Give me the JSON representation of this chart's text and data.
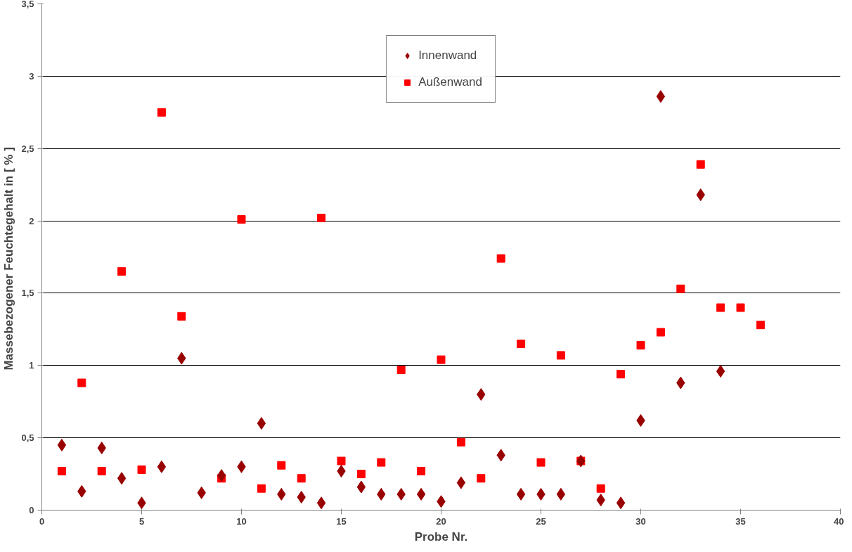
{
  "chart_data": {
    "type": "scatter",
    "xlabel": "Probe Nr.",
    "ylabel": "Massebezogener Feuchtegehalt in  [ % ]",
    "xlim": [
      0,
      40
    ],
    "xticks": [
      0,
      5,
      10,
      15,
      20,
      25,
      30,
      35,
      40
    ],
    "ylim": [
      0,
      3.5
    ],
    "yticks": [
      0,
      {
        "value": 0.5,
        "label": "0,5"
      },
      1,
      {
        "value": 1.5,
        "label": "1,5"
      },
      2,
      {
        "value": 2.5,
        "label": "2,5"
      },
      3,
      {
        "value": 3.5,
        "label": "3,5"
      }
    ],
    "grid": "y",
    "legend": "top",
    "series": [
      {
        "name": "Innenwand",
        "color": "#990000",
        "marker": "diamond",
        "x": [
          1,
          2,
          3,
          4,
          5,
          6,
          7,
          8,
          9,
          10,
          11,
          12,
          13,
          14,
          15,
          16,
          17,
          18,
          19,
          20,
          21,
          22,
          23,
          24,
          25,
          26,
          27,
          28,
          29,
          30,
          31,
          32,
          33,
          34
        ],
        "values": [
          0.45,
          0.13,
          0.43,
          0.22,
          0.05,
          0.3,
          1.05,
          0.12,
          0.24,
          0.3,
          0.6,
          0.11,
          0.09,
          0.05,
          0.27,
          0.16,
          0.11,
          0.11,
          0.11,
          0.06,
          0.19,
          0.8,
          0.38,
          0.11,
          0.11,
          0.11,
          0.34,
          0.07,
          0.05,
          0.62,
          2.86,
          0.88,
          2.18,
          0.96
        ]
      },
      {
        "name": "Außenwand",
        "color": "#ff0000",
        "marker": "square",
        "x": [
          1,
          2,
          3,
          4,
          5,
          6,
          7,
          9,
          10,
          11,
          12,
          13,
          14,
          15,
          16,
          17,
          18,
          19,
          20,
          21,
          22,
          23,
          24,
          25,
          26,
          27,
          28,
          29,
          30,
          31,
          32,
          33,
          34,
          35,
          36
        ],
        "values": [
          0.27,
          0.88,
          0.27,
          1.65,
          0.28,
          2.75,
          1.34,
          0.22,
          2.01,
          0.15,
          0.31,
          0.22,
          2.02,
          0.34,
          0.25,
          0.33,
          0.97,
          0.27,
          1.04,
          0.47,
          0.22,
          1.74,
          1.15,
          0.33,
          1.07,
          0.34,
          0.15,
          0.94,
          1.14,
          1.23,
          1.53,
          2.39,
          1.4,
          1.4,
          1.28
        ]
      }
    ]
  }
}
